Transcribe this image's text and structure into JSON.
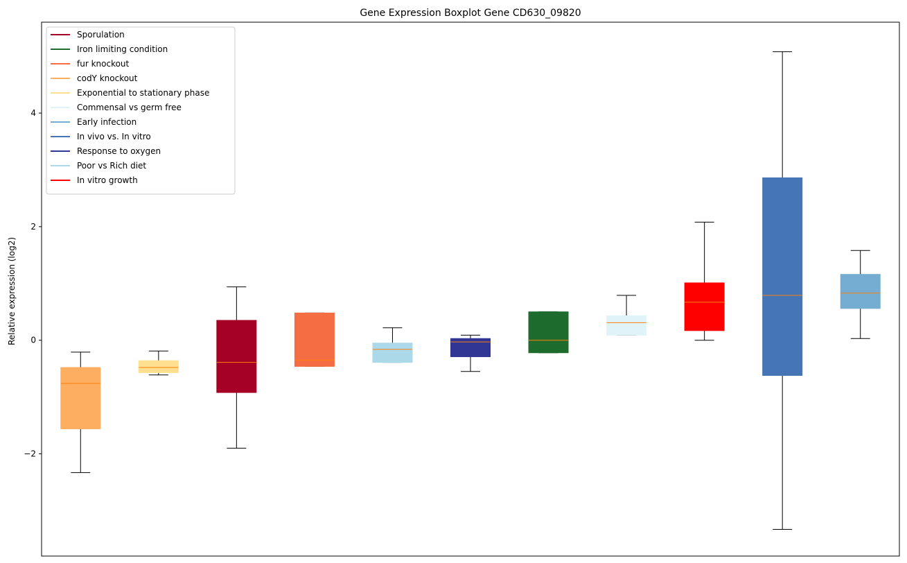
{
  "chart_data": {
    "type": "boxplot",
    "title": "Gene Expression Boxplot Gene CD630_09820",
    "xlabel": "",
    "ylabel": "Relative expression (log2)",
    "ylim": [
      -3.8,
      5.6
    ],
    "yticks": [
      -2,
      0,
      2,
      4
    ],
    "ytick_labels": [
      "−2",
      "0",
      "2",
      "4"
    ],
    "grid": false,
    "legend_placement": "top-left",
    "median_color": "#ff7f0e",
    "legend": [
      {
        "name": "Sporulation",
        "color": "#a50026"
      },
      {
        "name": "Iron limiting condition",
        "color": "#1e6b2e"
      },
      {
        "name": "fur knockout",
        "color": "#f46d43"
      },
      {
        "name": "codY knockout",
        "color": "#fdae61"
      },
      {
        "name": "Exponential to stationary phase",
        "color": "#fee090"
      },
      {
        "name": "Commensal vs germ free",
        "color": "#e0f3f8"
      },
      {
        "name": "Early infection",
        "color": "#74add1"
      },
      {
        "name": "In vivo vs. In vitro",
        "color": "#4575b4"
      },
      {
        "name": "Response to oxygen",
        "color": "#313695"
      },
      {
        "name": "Poor vs Rich diet",
        "color": "#abd9e9"
      },
      {
        "name": "In vitro growth",
        "color": "#ff0000"
      }
    ],
    "boxes": [
      {
        "condition": "codY knockout",
        "color": "#fdae61",
        "whisker_low": -2.33,
        "q1": -1.56,
        "median": -0.76,
        "q3": -0.48,
        "whisker_high": -0.21
      },
      {
        "condition": "Exponential to stationary phase",
        "color": "#fee090",
        "whisker_low": -0.61,
        "q1": -0.57,
        "median": -0.48,
        "q3": -0.36,
        "whisker_high": -0.19
      },
      {
        "condition": "Sporulation",
        "color": "#a50026",
        "whisker_low": -1.9,
        "q1": -0.92,
        "median": -0.39,
        "q3": 0.35,
        "whisker_high": 0.94
      },
      {
        "condition": "fur knockout",
        "color": "#f46d43",
        "whisker_low": -0.46,
        "q1": -0.46,
        "median": -0.35,
        "q3": 0.48,
        "whisker_high": 0.48
      },
      {
        "condition": "Poor vs Rich diet",
        "color": "#abd9e9",
        "whisker_low": -0.39,
        "q1": -0.39,
        "median": -0.16,
        "q3": -0.05,
        "whisker_high": 0.22
      },
      {
        "condition": "Response to oxygen",
        "color": "#313695",
        "whisker_low": -0.55,
        "q1": -0.29,
        "median": -0.03,
        "q3": 0.03,
        "whisker_high": 0.09
      },
      {
        "condition": "Iron limiting condition",
        "color": "#1e6b2e",
        "whisker_low": -0.22,
        "q1": -0.22,
        "median": 0.0,
        "q3": 0.5,
        "whisker_high": 0.5
      },
      {
        "condition": "Commensal vs germ free",
        "color": "#e0f3f8",
        "whisker_low": 0.09,
        "q1": 0.09,
        "median": 0.31,
        "q3": 0.43,
        "whisker_high": 0.79
      },
      {
        "condition": "In vitro growth",
        "color": "#ff0000",
        "whisker_low": 0.0,
        "q1": 0.17,
        "median": 0.67,
        "q3": 1.01,
        "whisker_high": 2.08
      },
      {
        "condition": "In vivo vs. In vitro",
        "color": "#4575b4",
        "whisker_low": -3.33,
        "q1": -0.62,
        "median": 0.79,
        "q3": 2.86,
        "whisker_high": 5.08
      },
      {
        "condition": "Early infection",
        "color": "#74add1",
        "whisker_low": 0.03,
        "q1": 0.56,
        "median": 0.83,
        "q3": 1.16,
        "whisker_high": 1.58
      }
    ]
  }
}
